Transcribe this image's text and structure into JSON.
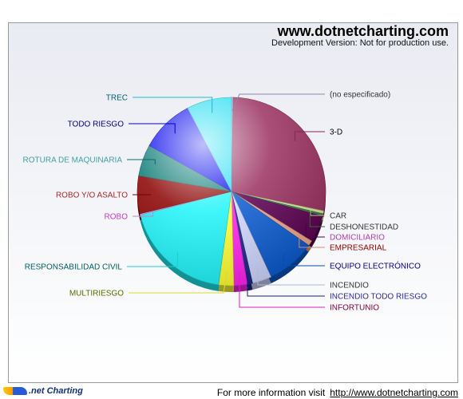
{
  "watermark": {
    "title": "www.dotnetcharting.com",
    "subtitle": "Development Version: Not for production use."
  },
  "footer": {
    "logo": ".net Charting",
    "info": "For more information visit",
    "link": "http://www.dotnetcharting.com"
  },
  "chart_data": {
    "type": "pie",
    "start_angle_deg": 0,
    "direction": "clockwise",
    "legend": "none",
    "slices": [
      {
        "name": "(no especificado)",
        "value": 0.3,
        "color": "#a79bc7",
        "label_color": "#333333"
      },
      {
        "name": "3-D",
        "value": 28.0,
        "color": "#9a2f60",
        "label_color": "#000000"
      },
      {
        "name": "CAR",
        "value": 0.5,
        "color": "#d8e89a",
        "label_color": "#333333"
      },
      {
        "name": "DESHONESTIDAD",
        "value": 0.4,
        "color": "#3c7a4c",
        "label_color": "#333333"
      },
      {
        "name": "DOMICILIARIO",
        "value": 4.6,
        "color": "#5b0050",
        "label_color": "#b13cb1"
      },
      {
        "name": "EMPRESARIAL",
        "value": 0.9,
        "color": "#f0a48a",
        "label_color": "#8b0000"
      },
      {
        "name": "EQUIPO ELECTRÓNICO",
        "value": 8.4,
        "color": "#0b5bd1",
        "label_color": "#000080"
      },
      {
        "name": "INCENDIO",
        "value": 3.3,
        "color": "#d0d7ff",
        "label_color": "#333333"
      },
      {
        "name": "INCENDIO TODO RIESGO",
        "value": 0.9,
        "color": "#1a2488",
        "label_color": "#2a2aa0"
      },
      {
        "name": "INFORTUNIO",
        "value": 2.3,
        "color": "#ff22ee",
        "label_color": "#800040"
      },
      {
        "name": "MULTIRIESGO",
        "value": 2.6,
        "color": "#ffff33",
        "label_color": "#556b00"
      },
      {
        "name": "RESPONSABILIDAD CIVIL",
        "value": 18.8,
        "color": "#1ff4f9",
        "label_color": "#006060"
      },
      {
        "name": "ROBO",
        "value": 0.2,
        "color": "#dba0f0",
        "label_color": "#c040c0"
      },
      {
        "name": "ROBO Y/O ASALTO",
        "value": 6.5,
        "color": "#8b0000",
        "label_color": "#a52a2a"
      },
      {
        "name": "ROTURA DE MAQUINARIA",
        "value": 5.4,
        "color": "#0c7b76",
        "label_color": "#40a0a0"
      },
      {
        "name": "TODO RIESGO",
        "value": 9.2,
        "color": "#0000ee",
        "label_color": "#000080"
      },
      {
        "name": "TREC",
        "value": 7.7,
        "color": "#22ddf2",
        "label_color": "#006070"
      }
    ]
  }
}
